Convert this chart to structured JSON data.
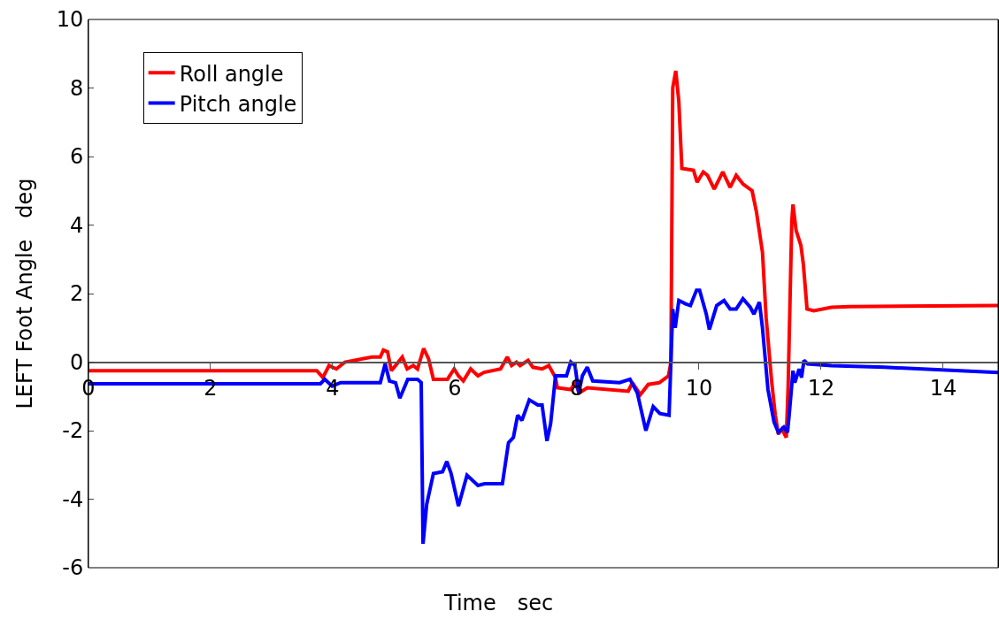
{
  "chart_data": {
    "type": "line",
    "xlabel": "Time　sec",
    "ylabel": "LEFT Foot Angle　deg",
    "xlim": [
      0,
      14.9
    ],
    "xticks": [
      0,
      2,
      4,
      6,
      8,
      10,
      12,
      14
    ],
    "ylim": [
      -6,
      10
    ],
    "yticks": [
      -6,
      -4,
      -2,
      0,
      2,
      4,
      6,
      8,
      10
    ],
    "grid": false,
    "legend": "top left",
    "marker": "none",
    "line_style": "solid",
    "series": [
      {
        "name": "Roll angle",
        "color": "#ff0000",
        "x": [
          0,
          3.74,
          3.84,
          3.94,
          4.06,
          4.2,
          4.64,
          4.78,
          4.83,
          4.9,
          4.96,
          5.03,
          5.14,
          5.22,
          5.32,
          5.39,
          5.49,
          5.57,
          5.65,
          5.8,
          5.88,
          5.99,
          6.06,
          6.14,
          6.26,
          6.38,
          6.48,
          6.75,
          6.86,
          6.93,
          7.01,
          7.07,
          7.2,
          7.28,
          7.43,
          7.54,
          7.65,
          7.68,
          7.9,
          7.97,
          8.04,
          8.17,
          8.84,
          8.91,
          9.04,
          9.17,
          9.35,
          9.5,
          9.54,
          9.57,
          9.62,
          9.67,
          9.72,
          9.91,
          9.97,
          10.07,
          10.14,
          10.25,
          10.39,
          10.51,
          10.61,
          10.72,
          10.87,
          10.94,
          11.04,
          11.1,
          11.19,
          11.25,
          11.3,
          11.36,
          11.43,
          11.46,
          11.52,
          11.54,
          11.59,
          11.67,
          11.71,
          11.77,
          11.88,
          12.17,
          12.46,
          14.9
        ],
        "values": [
          -0.25,
          -0.25,
          -0.45,
          -0.1,
          -0.2,
          0,
          0.15,
          0.15,
          0.35,
          0.3,
          -0.25,
          -0.1,
          0.15,
          -0.2,
          -0.1,
          -0.2,
          0.4,
          0.1,
          -0.5,
          -0.5,
          -0.5,
          -0.2,
          -0.4,
          -0.55,
          -0.2,
          -0.4,
          -0.3,
          -0.2,
          0.15,
          -0.1,
          0,
          -0.1,
          0.05,
          -0.15,
          -0.2,
          -0.1,
          -0.45,
          -0.75,
          -0.8,
          -0.6,
          -0.9,
          -0.75,
          -0.85,
          -0.6,
          -0.95,
          -0.65,
          -0.6,
          -0.4,
          0,
          8.0,
          8.5,
          7.6,
          5.65,
          5.6,
          5.25,
          5.55,
          5.45,
          5.05,
          5.55,
          5.1,
          5.45,
          5.2,
          5.0,
          4.4,
          3.2,
          1.3,
          -0.55,
          -1.55,
          -2.1,
          -1.95,
          -2.2,
          -0.75,
          4.1,
          4.6,
          3.85,
          3.4,
          2.85,
          1.55,
          1.5,
          1.6,
          1.62,
          1.65
        ]
      },
      {
        "name": "Pitch angle",
        "color": "#0000ff",
        "x": [
          0,
          3.8,
          3.87,
          3.99,
          4.13,
          4.78,
          4.86,
          4.93,
          5.03,
          5.1,
          5.23,
          5.39,
          5.45,
          5.48,
          5.54,
          5.65,
          5.8,
          5.87,
          5.94,
          6.06,
          6.2,
          6.38,
          6.49,
          6.78,
          6.88,
          6.96,
          7.03,
          7.1,
          7.22,
          7.36,
          7.43,
          7.51,
          7.57,
          7.65,
          7.83,
          7.9,
          7.97,
          8.03,
          8.09,
          8.17,
          8.26,
          8.7,
          8.87,
          8.99,
          9.13,
          9.25,
          9.36,
          9.51,
          9.57,
          9.61,
          9.67,
          9.78,
          9.86,
          9.96,
          10.01,
          10.12,
          10.17,
          10.29,
          10.41,
          10.51,
          10.61,
          10.72,
          10.84,
          10.9,
          10.99,
          11.04,
          11.13,
          11.23,
          11.3,
          11.39,
          11.45,
          11.48,
          11.54,
          11.57,
          11.64,
          11.68,
          11.72,
          11.78,
          12.17,
          13.04,
          14.9
        ],
        "values": [
          -0.63,
          -0.63,
          -0.5,
          -0.7,
          -0.6,
          -0.6,
          -0.05,
          -0.55,
          -0.6,
          -1.05,
          -0.5,
          -0.5,
          -0.6,
          -5.3,
          -4.15,
          -3.25,
          -3.2,
          -2.9,
          -3.25,
          -4.2,
          -3.3,
          -3.6,
          -3.55,
          -3.55,
          -2.35,
          -2.2,
          -1.55,
          -1.7,
          -1.1,
          -1.25,
          -1.25,
          -2.3,
          -1.8,
          -0.4,
          -0.4,
          0,
          -0.1,
          -0.9,
          -0.4,
          -0.15,
          -0.55,
          -0.6,
          -0.5,
          -0.9,
          -2.0,
          -1.3,
          -1.5,
          -1.55,
          1.55,
          1.0,
          1.8,
          1.7,
          1.65,
          2.1,
          2.1,
          1.4,
          0.95,
          1.65,
          1.8,
          1.55,
          1.55,
          1.85,
          1.6,
          1.4,
          1.75,
          1.0,
          -0.8,
          -1.75,
          -2.05,
          -1.9,
          -2.05,
          -1.5,
          -0.25,
          -0.6,
          -0.2,
          -0.45,
          0.05,
          -0.05,
          -0.1,
          -0.15,
          -0.3
        ]
      }
    ]
  }
}
